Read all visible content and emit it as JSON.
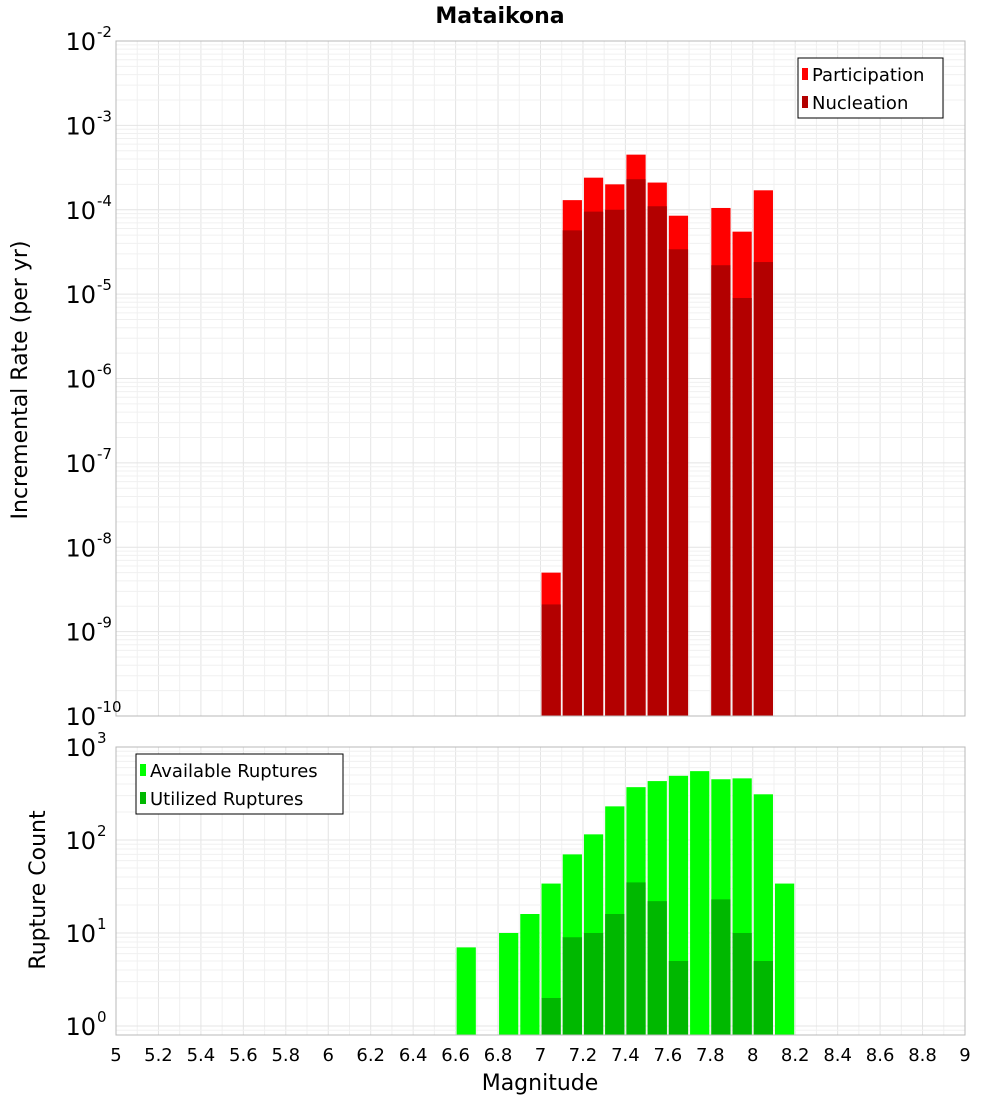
{
  "chart_data": [
    {
      "type": "bar",
      "title": "Mataikona",
      "ylabel": "Incremental Rate (per yr)",
      "xlabel": "",
      "yscale": "log",
      "ylim": [
        1e-10,
        0.01
      ],
      "xlim": [
        5,
        9
      ],
      "y_ticks": [
        {
          "base": "10",
          "exp": "-10"
        },
        {
          "base": "10",
          "exp": "-9"
        },
        {
          "base": "10",
          "exp": "-8"
        },
        {
          "base": "10",
          "exp": "-7"
        },
        {
          "base": "10",
          "exp": "-6"
        },
        {
          "base": "10",
          "exp": "-5"
        },
        {
          "base": "10",
          "exp": "-4"
        },
        {
          "base": "10",
          "exp": "-3"
        },
        {
          "base": "10",
          "exp": "-2"
        }
      ],
      "legend_position": "top-right",
      "grid": true,
      "x": [
        7.05,
        7.15,
        7.25,
        7.35,
        7.45,
        7.55,
        7.65,
        7.75,
        7.85,
        7.95,
        8.05
      ],
      "series": [
        {
          "name": "Participation",
          "color": "#ff0000",
          "values": [
            5e-09,
            0.00013,
            0.00024,
            0.0002,
            0.00045,
            0.00021,
            8.5e-05,
            null,
            0.000105,
            5.5e-05,
            0.00017
          ]
        },
        {
          "name": "Nucleation",
          "color": "#b30000",
          "values": [
            2.1e-09,
            5.7e-05,
            9.5e-05,
            0.0001,
            0.00023,
            0.00011,
            3.4e-05,
            null,
            2.2e-05,
            9e-06,
            2.4e-05
          ]
        }
      ]
    },
    {
      "type": "bar",
      "ylabel": "Rupture Count",
      "xlabel": "Magnitude",
      "yscale": "log",
      "ylim": [
        0.8,
        1000
      ],
      "xlim": [
        5,
        9
      ],
      "y_ticks": [
        {
          "value": 1,
          "base": "10",
          "exp": "0"
        },
        {
          "value": 10,
          "base": "10",
          "exp": "1"
        },
        {
          "value": 100,
          "base": "10",
          "exp": "2"
        },
        {
          "value": 1000,
          "base": "10",
          "exp": "3"
        }
      ],
      "x_ticks": [
        "5",
        "5.2",
        "5.4",
        "5.6",
        "5.8",
        "6",
        "6.2",
        "6.4",
        "6.6",
        "6.8",
        "7",
        "7.2",
        "7.4",
        "7.6",
        "7.8",
        "8",
        "8.2",
        "8.4",
        "8.6",
        "8.8",
        "9"
      ],
      "legend_position": "top-left",
      "grid": true,
      "x": [
        6.65,
        6.75,
        6.85,
        6.95,
        7.05,
        7.15,
        7.25,
        7.35,
        7.45,
        7.55,
        7.65,
        7.75,
        7.85,
        7.95,
        8.05,
        8.15
      ],
      "series": [
        {
          "name": "Available Ruptures",
          "color": "#00ff00",
          "values": [
            7,
            null,
            10,
            16,
            34,
            70,
            115,
            230,
            370,
            430,
            490,
            550,
            450,
            460,
            310,
            34
          ]
        },
        {
          "name": "Utilized Ruptures",
          "color": "#00b800",
          "values": [
            null,
            null,
            null,
            null,
            2,
            9,
            10,
            16,
            35,
            22,
            5,
            null,
            23,
            10,
            5,
            null
          ]
        }
      ]
    }
  ]
}
